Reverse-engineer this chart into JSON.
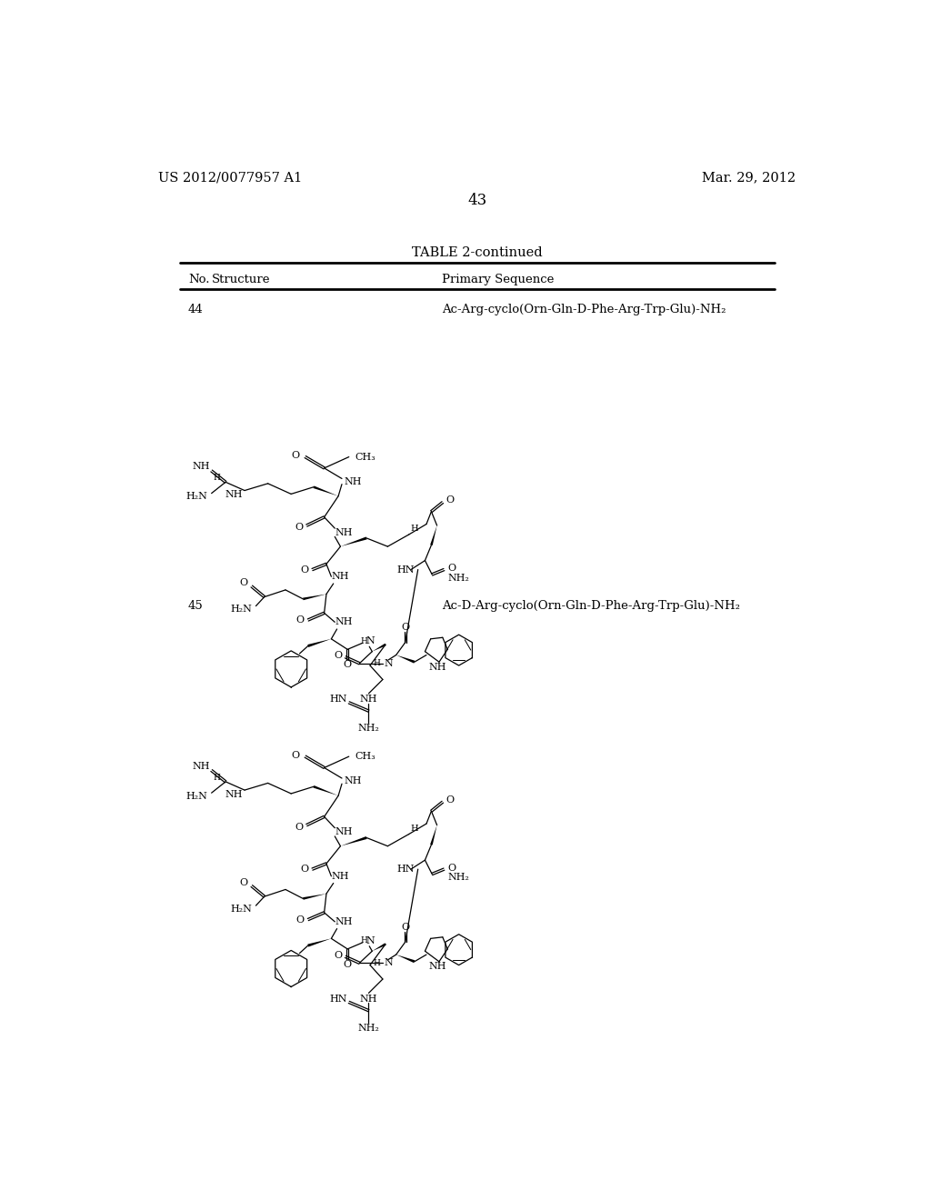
{
  "background_color": "#ffffff",
  "header_left": "US 2012/0077957 A1",
  "header_right": "Mar. 29, 2012",
  "page_number": "43",
  "table_title": "TABLE 2-continued",
  "col1_header": "No.",
  "col2_header": "Structure",
  "col3_header": "Primary Sequence",
  "entry44_no": "44",
  "entry44_seq": "Ac-Arg-cyclo(Orn-Gln-D-Phe-Arg-Trp-Glu)-NH₂",
  "entry45_no": "45",
  "entry45_seq": "Ac-D-Arg-cyclo(Orn-Gln-D-Phe-Arg-Trp-Glu)-NH₂",
  "text_color": "#000000",
  "line_color": "#000000"
}
